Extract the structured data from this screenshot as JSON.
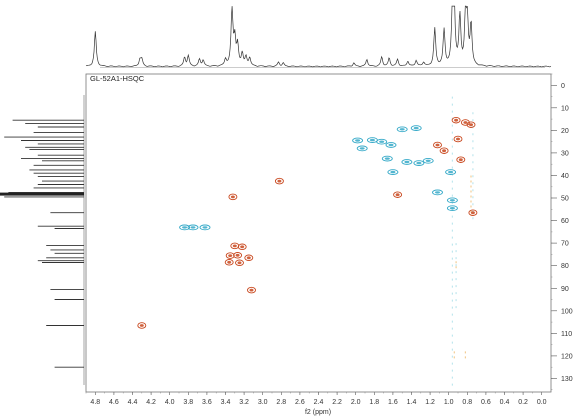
{
  "chart_data": {
    "type": "scatter",
    "title": "GL-52A1-HSQC",
    "xlabel": "f2 (ppm)",
    "ylabel": "",
    "x_axis": {
      "range": [
        4.9,
        -0.1
      ],
      "reversed": true,
      "ticks": [
        "4.8",
        "4.6",
        "4.4",
        "4.2",
        "4.0",
        "3.8",
        "3.6",
        "3.4",
        "3.2",
        "3.0",
        "2.8",
        "2.6",
        "2.4",
        "2.2",
        "2.0",
        "1.8",
        "1.6",
        "1.4",
        "1.2",
        "1.0",
        "0.8",
        "0.6",
        "0.4",
        "0.2",
        "0.0"
      ]
    },
    "y_axis": {
      "range": [
        -5,
        136
      ],
      "position": "right",
      "ticks": [
        "0",
        "10",
        "20",
        "30",
        "40",
        "50",
        "60",
        "70",
        "80",
        "90",
        "100",
        "110",
        "120",
        "130"
      ]
    },
    "grid": false,
    "colors": {
      "positive": "#c8461c",
      "negative": "#35a9c8",
      "negative_faint": "#a5dde8",
      "positive_faint": "#f0c07a",
      "frame": "#555555",
      "trace": "#333333"
    },
    "series": [
      {
        "sign": "positive",
        "points": [
          {
            "x": 4.3,
            "y": 106.5
          },
          {
            "x": 3.32,
            "y": 49.5
          },
          {
            "x": 3.3,
            "y": 71.2
          },
          {
            "x": 3.22,
            "y": 71.6
          },
          {
            "x": 3.35,
            "y": 75.5
          },
          {
            "x": 3.27,
            "y": 75.4
          },
          {
            "x": 3.15,
            "y": 76.5
          },
          {
            "x": 3.36,
            "y": 78.5
          },
          {
            "x": 3.25,
            "y": 78.7
          },
          {
            "x": 3.12,
            "y": 90.8
          },
          {
            "x": 2.82,
            "y": 42.5
          },
          {
            "x": 1.55,
            "y": 48.5
          },
          {
            "x": 1.12,
            "y": 26.5
          },
          {
            "x": 1.05,
            "y": 29.0
          },
          {
            "x": 0.92,
            "y": 15.5
          },
          {
            "x": 0.82,
            "y": 16.5
          },
          {
            "x": 0.76,
            "y": 17.5
          },
          {
            "x": 0.9,
            "y": 23.8
          },
          {
            "x": 0.87,
            "y": 33.0
          },
          {
            "x": 0.74,
            "y": 56.5
          }
        ]
      },
      {
        "sign": "negative",
        "points": [
          {
            "x": 3.84,
            "y": 63.0
          },
          {
            "x": 3.75,
            "y": 63.0
          },
          {
            "x": 3.62,
            "y": 63.0
          },
          {
            "x": 1.98,
            "y": 24.5
          },
          {
            "x": 1.93,
            "y": 28.0
          },
          {
            "x": 1.82,
            "y": 24.3
          },
          {
            "x": 1.72,
            "y": 25.0
          },
          {
            "x": 1.62,
            "y": 26.5
          },
          {
            "x": 1.66,
            "y": 32.5
          },
          {
            "x": 1.6,
            "y": 38.5
          },
          {
            "x": 1.5,
            "y": 19.5
          },
          {
            "x": 1.45,
            "y": 34.0
          },
          {
            "x": 1.32,
            "y": 34.5
          },
          {
            "x": 1.22,
            "y": 33.5
          },
          {
            "x": 1.35,
            "y": 19.0
          },
          {
            "x": 1.12,
            "y": 47.5
          },
          {
            "x": 0.98,
            "y": 38.5
          },
          {
            "x": 0.96,
            "y": 51.0
          },
          {
            "x": 0.96,
            "y": 54.5
          }
        ]
      }
    ],
    "spectrum_1h": [
      {
        "x": 4.8,
        "h": 0.6
      },
      {
        "x": 4.32,
        "h": 0.12
      },
      {
        "x": 4.3,
        "h": 0.12
      },
      {
        "x": 3.84,
        "h": 0.15
      },
      {
        "x": 3.8,
        "h": 0.18
      },
      {
        "x": 3.68,
        "h": 0.12
      },
      {
        "x": 3.64,
        "h": 0.11
      },
      {
        "x": 3.4,
        "h": 0.12
      },
      {
        "x": 3.33,
        "h": 1.0
      },
      {
        "x": 3.3,
        "h": 0.45
      },
      {
        "x": 3.27,
        "h": 0.35
      },
      {
        "x": 3.22,
        "h": 0.22
      },
      {
        "x": 3.18,
        "h": 0.15
      },
      {
        "x": 3.14,
        "h": 0.15
      },
      {
        "x": 2.83,
        "h": 0.07
      },
      {
        "x": 2.78,
        "h": 0.06
      },
      {
        "x": 2.02,
        "h": 0.06
      },
      {
        "x": 1.88,
        "h": 0.12
      },
      {
        "x": 1.72,
        "h": 0.16
      },
      {
        "x": 1.64,
        "h": 0.14
      },
      {
        "x": 1.55,
        "h": 0.12
      },
      {
        "x": 1.44,
        "h": 0.09
      },
      {
        "x": 1.35,
        "h": 0.1
      },
      {
        "x": 1.27,
        "h": 0.07
      },
      {
        "x": 1.15,
        "h": 0.65
      },
      {
        "x": 1.05,
        "h": 0.62
      },
      {
        "x": 0.96,
        "h": 0.95
      },
      {
        "x": 0.94,
        "h": 0.9
      },
      {
        "x": 0.88,
        "h": 0.85
      },
      {
        "x": 0.82,
        "h": 0.8
      },
      {
        "x": 0.8,
        "h": 0.75
      },
      {
        "x": 0.76,
        "h": 0.72
      }
    ],
    "spectrum_13c": [
      {
        "y": 15.5,
        "h": 0.85
      },
      {
        "y": 17.0,
        "h": 0.7
      },
      {
        "y": 18.5,
        "h": 0.55
      },
      {
        "y": 21.0,
        "h": 0.6
      },
      {
        "y": 23.0,
        "h": 0.95
      },
      {
        "y": 24.5,
        "h": 0.75
      },
      {
        "y": 26.0,
        "h": 0.55
      },
      {
        "y": 27.5,
        "h": 0.7
      },
      {
        "y": 28.5,
        "h": 0.65
      },
      {
        "y": 31.0,
        "h": 0.55
      },
      {
        "y": 32.5,
        "h": 0.75
      },
      {
        "y": 33.5,
        "h": 0.5
      },
      {
        "y": 35.5,
        "h": 0.6
      },
      {
        "y": 37.5,
        "h": 0.65
      },
      {
        "y": 39.0,
        "h": 0.6
      },
      {
        "y": 40.5,
        "h": 0.55
      },
      {
        "y": 42.5,
        "h": 0.5
      },
      {
        "y": 44.0,
        "h": 0.55
      },
      {
        "y": 45.5,
        "h": 0.6
      },
      {
        "y": 47.5,
        "h": 0.9
      },
      {
        "y": 48.5,
        "h": 1.0
      },
      {
        "y": 49.5,
        "h": 0.95
      },
      {
        "y": 56.5,
        "h": 0.4
      },
      {
        "y": 62.5,
        "h": 0.55
      },
      {
        "y": 63.5,
        "h": 0.35
      },
      {
        "y": 71.0,
        "h": 0.45
      },
      {
        "y": 73.0,
        "h": 0.4
      },
      {
        "y": 74.5,
        "h": 0.35
      },
      {
        "y": 76.5,
        "h": 0.45
      },
      {
        "y": 77.8,
        "h": 0.55
      },
      {
        "y": 78.6,
        "h": 0.5
      },
      {
        "y": 90.5,
        "h": 0.4
      },
      {
        "y": 95.0,
        "h": 0.35
      },
      {
        "y": 106.5,
        "h": 0.45
      },
      {
        "y": 125.0,
        "h": 0.35
      }
    ]
  }
}
